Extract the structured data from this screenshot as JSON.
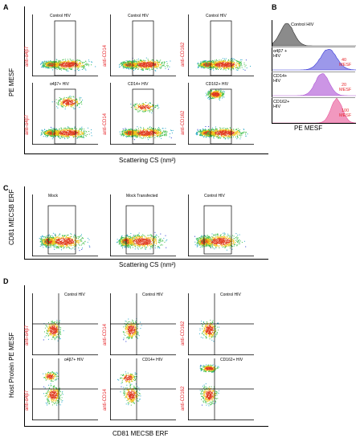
{
  "panel_labels": {
    "a": "A",
    "b": "B",
    "c": "C",
    "d": "D"
  },
  "panelA": {
    "y_title": "PE MESF",
    "x_title": "Scattering CS (nm²)",
    "plots": [
      {
        "title": "Control HIV",
        "ylabel": "anti-α4β7"
      },
      {
        "title": "Control HIV",
        "ylabel": "anti-CD14"
      },
      {
        "title": "Control HIV",
        "ylabel": "anti-CD162"
      },
      {
        "title": "α4β7+ HIV",
        "ylabel": "anti-α4β7"
      },
      {
        "title": "CD14+ HIV",
        "ylabel": "anti-CD14"
      },
      {
        "title": "CD162+ HIV",
        "ylabel": "anti-CD162"
      }
    ]
  },
  "panelB": {
    "x_title": "PE MESF",
    "rows": [
      {
        "label": "Control HIV",
        "value": "",
        "unit": ""
      },
      {
        "label": "α4β7 + HIV",
        "value": "40",
        "unit": "MESF"
      },
      {
        "label": "CD14+ HIV",
        "value": "20",
        "unit": "MESF"
      },
      {
        "label": "CD162+ HIV",
        "value": "100",
        "unit": "MESF"
      }
    ]
  },
  "panelC": {
    "y_title": "CD81 MECSB ERF",
    "x_title": "Scattering CS (nm²)",
    "plots": [
      {
        "title": "Mock"
      },
      {
        "title": "Mock Transfected"
      },
      {
        "title": "Control HIV"
      }
    ]
  },
  "panelD": {
    "y_title": "Host Protein PE MESF",
    "x_title": "CD81 MECSB ERF",
    "plots": [
      {
        "title": "Control HIV",
        "ylabel": "anti-α4β7"
      },
      {
        "title": "Control HIV",
        "ylabel": "anti-CD14"
      },
      {
        "title": "Control HIV",
        "ylabel": "anti-CD162"
      },
      {
        "title": "α4β7+ HIV",
        "ylabel": "anti-α4β7"
      },
      {
        "title": "CD14+ HIV",
        "ylabel": "anti-CD14"
      },
      {
        "title": "CD162+ HIV",
        "ylabel": "anti-CD162"
      }
    ]
  },
  "colors": {
    "red": "#e6262b",
    "blue": "#3a3ad8",
    "purple": "#b15bd6",
    "pink": "#e8589c",
    "gray": "#777777"
  }
}
